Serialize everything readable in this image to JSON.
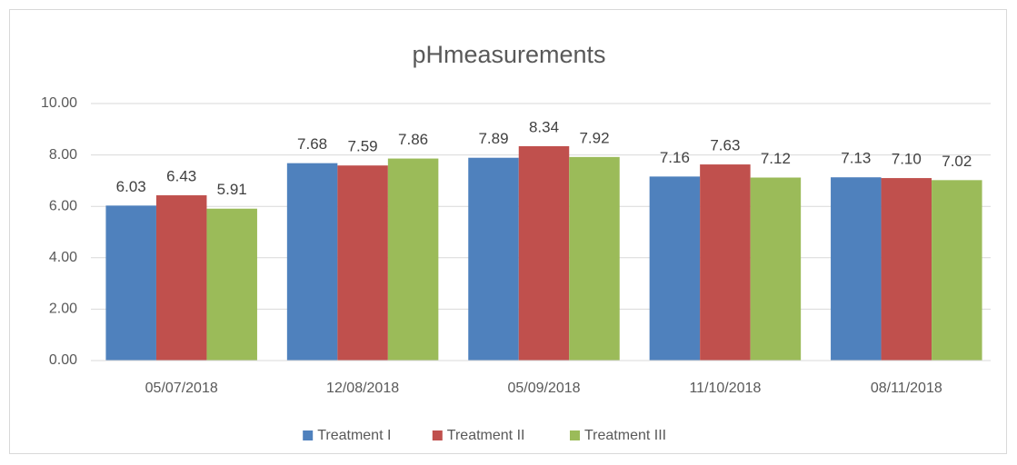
{
  "chart_data": {
    "type": "bar",
    "title": "pHmeasurements",
    "categories": [
      "05/07/2018",
      "12/08/2018",
      "05/09/2018",
      "11/10/2018",
      "08/11/2018"
    ],
    "series": [
      {
        "name": "Treatment I",
        "color": "#4f81bd",
        "values": [
          6.03,
          7.68,
          7.89,
          7.16,
          7.13
        ],
        "value_labels": [
          "6.03",
          "7.68",
          "7.89",
          "7.16",
          "7.13"
        ]
      },
      {
        "name": "Treatment II",
        "color": "#c0504d",
        "values": [
          6.43,
          7.59,
          8.34,
          7.63,
          7.1
        ],
        "value_labels": [
          "6.43",
          "7.59",
          "8.34",
          "7.63",
          "7.10"
        ]
      },
      {
        "name": "Treatment III",
        "color": "#9bbb59",
        "values": [
          5.91,
          7.86,
          7.92,
          7.12,
          7.02
        ],
        "value_labels": [
          "5.91",
          "7.86",
          "7.92",
          "7.12",
          "7.02"
        ]
      }
    ],
    "ylim": [
      0,
      10
    ],
    "yticks": [
      {
        "value": 0,
        "label": "0.00"
      },
      {
        "value": 2,
        "label": "2.00"
      },
      {
        "value": 4,
        "label": "4.00"
      },
      {
        "value": 6,
        "label": "6.00"
      },
      {
        "value": 8,
        "label": "8.00"
      },
      {
        "value": 10,
        "label": "10.00"
      }
    ],
    "grid": true,
    "legend": "bottom"
  }
}
